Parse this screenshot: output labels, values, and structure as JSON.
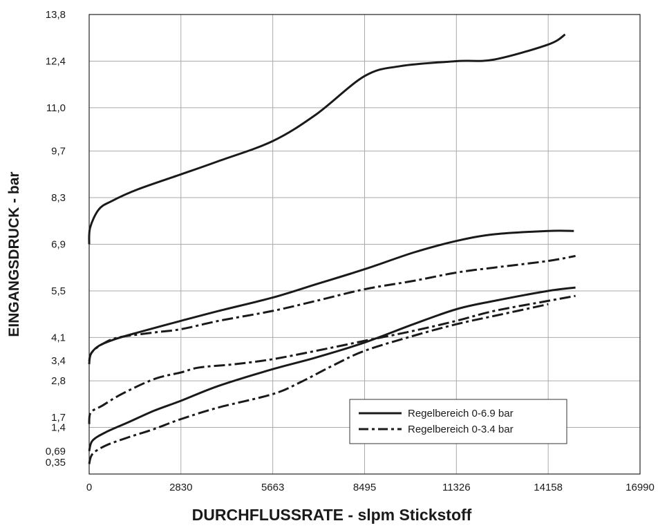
{
  "chart_data": {
    "type": "line",
    "xlabel": "DURCHFLUSSRATE - slpm Stickstoff",
    "ylabel": "EINGANGSDRUCK - bar",
    "xlim": [
      0,
      16990
    ],
    "ylim": [
      0,
      13.8
    ],
    "grid": true,
    "legend_position": "bottom-right",
    "x_ticks": [
      {
        "value": 0,
        "label": "0"
      },
      {
        "value": 2830,
        "label": "2830"
      },
      {
        "value": 5663,
        "label": "5663"
      },
      {
        "value": 8495,
        "label": "8495"
      },
      {
        "value": 11326,
        "label": "11326"
      },
      {
        "value": 14158,
        "label": "14158"
      },
      {
        "value": 16990,
        "label": "16990"
      }
    ],
    "y_ticks": [
      {
        "value": 0.35,
        "label": "0,35"
      },
      {
        "value": 0.69,
        "label": "0,69"
      },
      {
        "value": 1.4,
        "label": "1,4"
      },
      {
        "value": 1.7,
        "label": "1,7"
      },
      {
        "value": 2.8,
        "label": "2,8"
      },
      {
        "value": 3.4,
        "label": "3,4"
      },
      {
        "value": 4.1,
        "label": "4,1"
      },
      {
        "value": 5.5,
        "label": "5,5"
      },
      {
        "value": 6.9,
        "label": "6,9"
      },
      {
        "value": 8.3,
        "label": "8,3"
      },
      {
        "value": 9.7,
        "label": "9,7"
      },
      {
        "value": 11.0,
        "label": "11,0"
      },
      {
        "value": 12.4,
        "label": "12,4"
      },
      {
        "value": 13.8,
        "label": "13,8"
      }
    ],
    "grid_x": [
      0,
      2830,
      5663,
      8495,
      11326,
      14158,
      16990
    ],
    "grid_y": [
      0,
      1.4,
      2.8,
      4.1,
      5.5,
      6.9,
      8.3,
      9.7,
      11.0,
      12.4,
      13.8
    ],
    "legend": [
      {
        "label": "Regelbereich 0-6.9 bar",
        "style": "solid"
      },
      {
        "label": "Regelbereich 0-3.4 bar",
        "style": "dashdot"
      }
    ],
    "series": [
      {
        "style": "solid",
        "points": [
          [
            0,
            6.9
          ],
          [
            30,
            7.4
          ],
          [
            300,
            7.95
          ],
          [
            700,
            8.2
          ],
          [
            1500,
            8.55
          ],
          [
            2830,
            9.0
          ],
          [
            4000,
            9.4
          ],
          [
            5663,
            10.0
          ],
          [
            7000,
            10.8
          ],
          [
            8495,
            11.95
          ],
          [
            9600,
            12.25
          ],
          [
            11326,
            12.4
          ],
          [
            12500,
            12.45
          ],
          [
            14158,
            12.9
          ],
          [
            14680,
            13.2
          ]
        ]
      },
      {
        "style": "solid",
        "points": [
          [
            0,
            3.3
          ],
          [
            50,
            3.6
          ],
          [
            300,
            3.85
          ],
          [
            800,
            4.05
          ],
          [
            1500,
            4.25
          ],
          [
            2830,
            4.6
          ],
          [
            4000,
            4.9
          ],
          [
            5663,
            5.3
          ],
          [
            7000,
            5.7
          ],
          [
            8495,
            6.15
          ],
          [
            10000,
            6.65
          ],
          [
            11326,
            7.0
          ],
          [
            12500,
            7.2
          ],
          [
            14158,
            7.3
          ],
          [
            14950,
            7.3
          ]
        ]
      },
      {
        "style": "dashdot",
        "points": [
          [
            0,
            3.4
          ],
          [
            80,
            3.65
          ],
          [
            400,
            3.9
          ],
          [
            900,
            4.1
          ],
          [
            2000,
            4.25
          ],
          [
            2830,
            4.35
          ],
          [
            4000,
            4.6
          ],
          [
            5663,
            4.9
          ],
          [
            7000,
            5.2
          ],
          [
            8495,
            5.55
          ],
          [
            10000,
            5.8
          ],
          [
            11326,
            6.05
          ],
          [
            12500,
            6.2
          ],
          [
            14158,
            6.4
          ],
          [
            15000,
            6.55
          ]
        ]
      },
      {
        "style": "dashdot",
        "points": [
          [
            0,
            1.5
          ],
          [
            50,
            1.85
          ],
          [
            400,
            2.05
          ],
          [
            1000,
            2.4
          ],
          [
            2000,
            2.85
          ],
          [
            2830,
            3.05
          ],
          [
            3400,
            3.2
          ],
          [
            4500,
            3.3
          ],
          [
            5663,
            3.45
          ],
          [
            7000,
            3.7
          ],
          [
            8495,
            4.0
          ],
          [
            10000,
            4.3
          ],
          [
            11326,
            4.6
          ],
          [
            12500,
            4.9
          ],
          [
            14158,
            5.2
          ],
          [
            15000,
            5.35
          ]
        ]
      },
      {
        "style": "solid",
        "points": [
          [
            0,
            0.69
          ],
          [
            100,
            1.0
          ],
          [
            500,
            1.25
          ],
          [
            1200,
            1.55
          ],
          [
            2000,
            1.9
          ],
          [
            2830,
            2.2
          ],
          [
            4000,
            2.65
          ],
          [
            5663,
            3.15
          ],
          [
            7000,
            3.5
          ],
          [
            8495,
            3.95
          ],
          [
            10000,
            4.5
          ],
          [
            11326,
            4.95
          ],
          [
            12500,
            5.2
          ],
          [
            14158,
            5.5
          ],
          [
            15000,
            5.6
          ]
        ]
      },
      {
        "style": "dashdot",
        "points": [
          [
            0,
            0.3
          ],
          [
            100,
            0.6
          ],
          [
            500,
            0.85
          ],
          [
            1200,
            1.1
          ],
          [
            2000,
            1.35
          ],
          [
            2830,
            1.65
          ],
          [
            4000,
            2.0
          ],
          [
            5663,
            2.4
          ],
          [
            6500,
            2.75
          ],
          [
            7500,
            3.25
          ],
          [
            8495,
            3.7
          ],
          [
            10000,
            4.15
          ],
          [
            11326,
            4.5
          ],
          [
            12500,
            4.75
          ],
          [
            14158,
            5.1
          ]
        ]
      }
    ]
  }
}
